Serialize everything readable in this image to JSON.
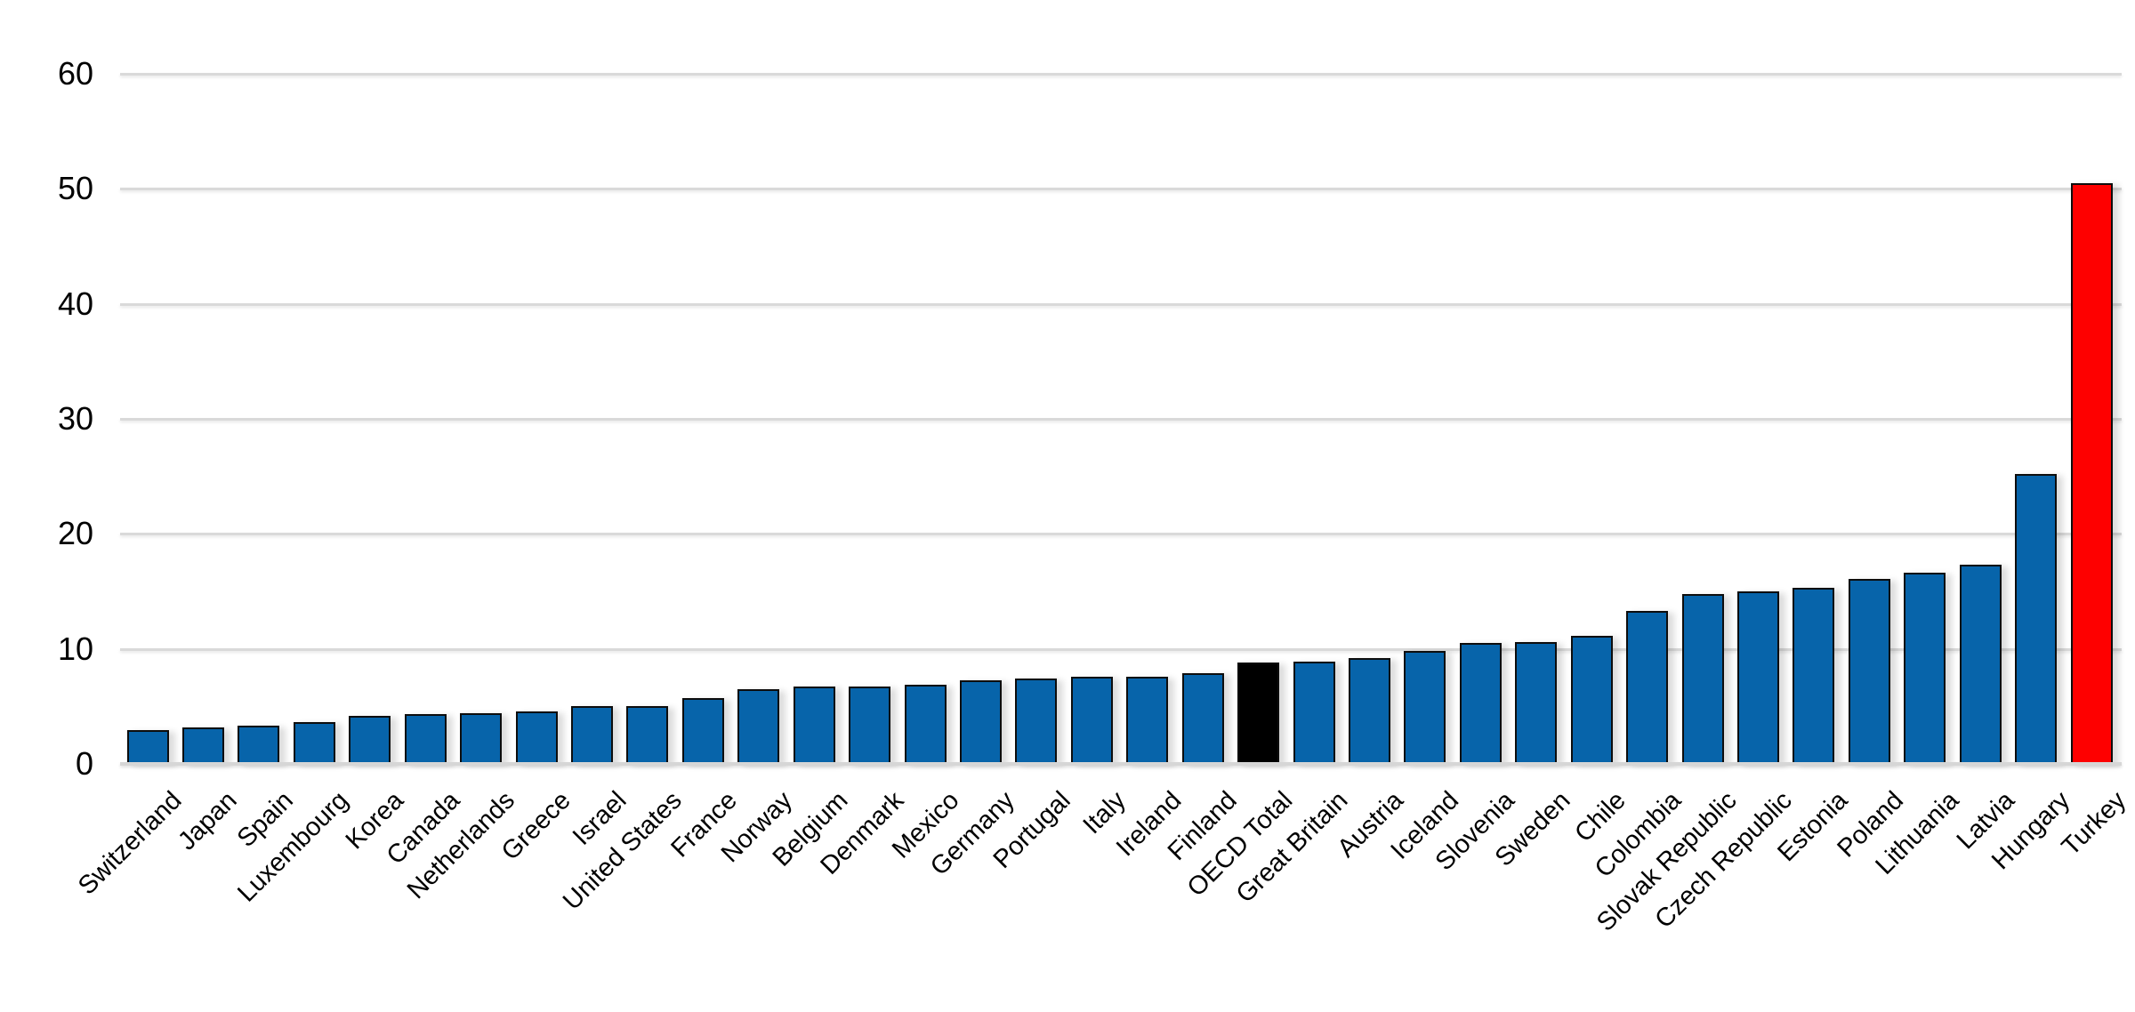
{
  "chart_data": {
    "type": "bar",
    "title": "",
    "xlabel": "",
    "ylabel": "",
    "ylim": [
      0,
      60
    ],
    "yticks": [
      0,
      10,
      20,
      30,
      40,
      50,
      60
    ],
    "grid": "horizontal",
    "legend": "none",
    "highlight_note": "OECD Total bar is black, Turkey bar is red, all other bars blue",
    "items": [
      {
        "label": "Switzerland",
        "value": 2.9,
        "color": "blue"
      },
      {
        "label": "Japan",
        "value": 3.2,
        "color": "blue"
      },
      {
        "label": "Spain",
        "value": 3.3,
        "color": "blue"
      },
      {
        "label": "Luxembourg",
        "value": 3.6,
        "color": "blue"
      },
      {
        "label": "Korea",
        "value": 4.2,
        "color": "blue"
      },
      {
        "label": "Canada",
        "value": 4.3,
        "color": "blue"
      },
      {
        "label": "Netherlands",
        "value": 4.4,
        "color": "blue"
      },
      {
        "label": "Greece",
        "value": 4.6,
        "color": "blue"
      },
      {
        "label": "Israel",
        "value": 5.0,
        "color": "blue"
      },
      {
        "label": "United States",
        "value": 5.0,
        "color": "blue"
      },
      {
        "label": "France",
        "value": 5.7,
        "color": "blue"
      },
      {
        "label": "Norway",
        "value": 6.5,
        "color": "blue"
      },
      {
        "label": "Belgium",
        "value": 6.7,
        "color": "blue"
      },
      {
        "label": "Denmark",
        "value": 6.7,
        "color": "blue"
      },
      {
        "label": "Mexico",
        "value": 6.9,
        "color": "blue"
      },
      {
        "label": "Germany",
        "value": 7.3,
        "color": "blue"
      },
      {
        "label": "Portugal",
        "value": 7.4,
        "color": "blue"
      },
      {
        "label": "Italy",
        "value": 7.6,
        "color": "blue"
      },
      {
        "label": "Ireland",
        "value": 7.6,
        "color": "blue"
      },
      {
        "label": "Finland",
        "value": 7.9,
        "color": "blue"
      },
      {
        "label": "OECD Total",
        "value": 8.8,
        "color": "black"
      },
      {
        "label": "Great Britain",
        "value": 8.9,
        "color": "blue"
      },
      {
        "label": "Austria",
        "value": 9.2,
        "color": "blue"
      },
      {
        "label": "Iceland",
        "value": 9.8,
        "color": "blue"
      },
      {
        "label": "Slovenia",
        "value": 10.5,
        "color": "blue"
      },
      {
        "label": "Sweden",
        "value": 10.6,
        "color": "blue"
      },
      {
        "label": "Chile",
        "value": 11.1,
        "color": "blue"
      },
      {
        "label": "Colombia",
        "value": 13.3,
        "color": "blue"
      },
      {
        "label": "Slovak Republic",
        "value": 14.8,
        "color": "blue"
      },
      {
        "label": "Czech Republic",
        "value": 15.0,
        "color": "blue"
      },
      {
        "label": "Estonia",
        "value": 15.3,
        "color": "blue"
      },
      {
        "label": "Poland",
        "value": 16.1,
        "color": "blue"
      },
      {
        "label": "Lithuania",
        "value": 16.6,
        "color": "blue"
      },
      {
        "label": "Latvia",
        "value": 17.3,
        "color": "blue"
      },
      {
        "label": "Hungary",
        "value": 25.2,
        "color": "blue"
      },
      {
        "label": "Turkey",
        "value": 50.5,
        "color": "red"
      }
    ],
    "palette": {
      "blue": "#0764AA",
      "black": "#000000",
      "red": "#FE0000",
      "gridline": "#D9D9D9",
      "axis_text": "#000000",
      "bar_outline": "#0D0D0D",
      "background": "#FFFFFF"
    }
  }
}
